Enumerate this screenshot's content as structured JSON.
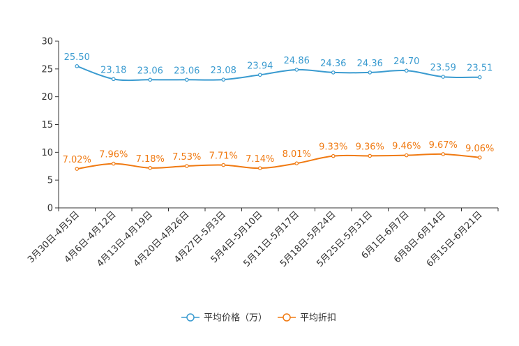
{
  "chart_data": {
    "type": "line",
    "title": "",
    "xlabel": "",
    "ylabel": "",
    "ylim": [
      0,
      30
    ],
    "yticks": [
      0,
      5,
      10,
      15,
      20,
      25,
      30
    ],
    "grid": false,
    "legend_position": "bottom-center",
    "categories": [
      "3月30日-4月5日",
      "4月6日-4月12日",
      "4月13日-4月19日",
      "4月20日-4月26日",
      "4月27日-5月3日",
      "5月4日-5月10日",
      "5月11日-5月17日",
      "5月18日-5月24日",
      "5月25日-5月31日",
      "6月1日-6月7日",
      "6月8日-6月14日",
      "6月15日-6月21日"
    ],
    "series": [
      {
        "name": "平均价格（万）",
        "color": "#3a9bd0",
        "values": [
          25.5,
          23.18,
          23.06,
          23.06,
          23.08,
          23.94,
          24.86,
          24.36,
          24.36,
          24.7,
          23.59,
          23.51
        ],
        "labels": [
          "25.50",
          "23.18",
          "23.06",
          "23.06",
          "23.08",
          "23.94",
          "24.86",
          "24.36",
          "24.36",
          "24.70",
          "23.59",
          "23.51"
        ]
      },
      {
        "name": "平均折扣",
        "color": "#f07a12",
        "values": [
          7.02,
          7.96,
          7.18,
          7.53,
          7.71,
          7.14,
          8.01,
          9.33,
          9.36,
          9.46,
          9.67,
          9.06
        ],
        "labels": [
          "7.02%",
          "7.96%",
          "7.18%",
          "7.53%",
          "7.71%",
          "7.14%",
          "8.01%",
          "9.33%",
          "9.36%",
          "9.46%",
          "9.67%",
          "9.06%"
        ]
      }
    ]
  }
}
